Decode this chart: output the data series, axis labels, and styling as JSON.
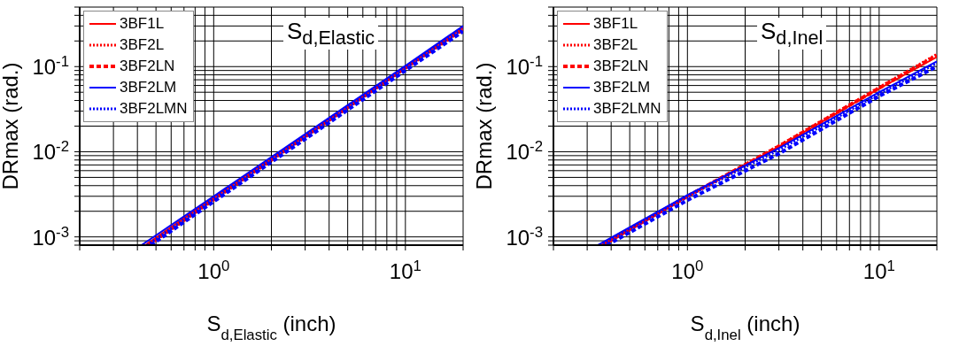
{
  "chart_data": [
    {
      "type": "line",
      "xlabel": "S$_{d,Elastic}$ (inch)",
      "ylabel": "DRmax (rad.)",
      "annotations": [
        "S$_{d,Elastic}$"
      ],
      "log": "xy",
      "grid": true,
      "legend": "top left",
      "marker": "none",
      "xlim": [
        0.2,
        20
      ],
      "ylim": [
        0.0008,
        0.5
      ],
      "xticks": [
        {
          "value": 0.2,
          "label": null
        },
        {
          "value": 0.3,
          "label": null
        },
        {
          "value": 0.4,
          "label": null
        },
        {
          "value": 0.5,
          "label": null
        },
        {
          "value": 0.6,
          "label": null
        },
        {
          "value": 0.7,
          "label": null
        },
        {
          "value": 0.8,
          "label": null
        },
        {
          "value": 0.9,
          "label": null
        },
        {
          "value": 1,
          "label": "10$^{0}$"
        },
        {
          "value": 2,
          "label": null
        },
        {
          "value": 3,
          "label": null
        },
        {
          "value": 4,
          "label": null
        },
        {
          "value": 5,
          "label": null
        },
        {
          "value": 6,
          "label": null
        },
        {
          "value": 7,
          "label": null
        },
        {
          "value": 8,
          "label": null
        },
        {
          "value": 9,
          "label": null
        },
        {
          "value": 10,
          "label": "10$^{1}$"
        },
        {
          "value": 20,
          "label": null
        }
      ],
      "yticks": [
        {
          "value": 0.0008,
          "label": null
        },
        {
          "value": 0.0009,
          "label": null
        },
        {
          "value": 0.001,
          "label": "10$^{-3}$"
        },
        {
          "value": 0.002,
          "label": null
        },
        {
          "value": 0.003,
          "label": null
        },
        {
          "value": 0.004,
          "label": null
        },
        {
          "value": 0.005,
          "label": null
        },
        {
          "value": 0.006,
          "label": null
        },
        {
          "value": 0.007,
          "label": null
        },
        {
          "value": 0.008,
          "label": null
        },
        {
          "value": 0.009,
          "label": null
        },
        {
          "value": 0.01,
          "label": "10$^{-2}$"
        },
        {
          "value": 0.02,
          "label": null
        },
        {
          "value": 0.03,
          "label": null
        },
        {
          "value": 0.04,
          "label": null
        },
        {
          "value": 0.05,
          "label": null
        },
        {
          "value": 0.06,
          "label": null
        },
        {
          "value": 0.07,
          "label": null
        },
        {
          "value": 0.08,
          "label": null
        },
        {
          "value": 0.09,
          "label": null
        },
        {
          "value": 0.1,
          "label": "10$^{-1}$"
        },
        {
          "value": 0.2,
          "label": null
        },
        {
          "value": 0.3,
          "label": null
        },
        {
          "value": 0.4,
          "label": null
        },
        {
          "value": 0.5,
          "label": null
        }
      ],
      "series": [
        {
          "name": "3BF1L",
          "color": "#ff0000",
          "line_style": "solid",
          "x": [
            0.44,
            1,
            10,
            20
          ],
          "values": [
            0.0008,
            0.0029,
            0.1,
            0.29
          ]
        },
        {
          "name": "3BF2L",
          "color": "#ff0000",
          "line_style": "dotted",
          "x": [
            0.46,
            1,
            10,
            20
          ],
          "values": [
            0.0008,
            0.0027,
            0.095,
            0.27
          ]
        },
        {
          "name": "3BF2LN",
          "color": "#ff0000",
          "line_style": "dashed",
          "x": [
            0.45,
            1,
            10,
            20
          ],
          "values": [
            0.0008,
            0.0028,
            0.098,
            0.28
          ]
        },
        {
          "name": "3BF2LM",
          "color": "#0000ff",
          "line_style": "solid",
          "x": [
            0.42,
            1,
            10,
            20
          ],
          "values": [
            0.0008,
            0.003,
            0.102,
            0.3
          ]
        },
        {
          "name": "3BF2LMN",
          "color": "#0000ff",
          "line_style": "dotted",
          "x": [
            0.45,
            1,
            10,
            20
          ],
          "values": [
            0.0008,
            0.0028,
            0.097,
            0.28
          ]
        },
        {
          "color": "#0000ff",
          "line_style": "dashed",
          "x": [
            0.47,
            1,
            10,
            20
          ],
          "values": [
            0.0008,
            0.0026,
            0.09,
            0.26
          ]
        }
      ]
    },
    {
      "type": "line",
      "xlabel": "S$_{d,Inel}$ (inch)",
      "ylabel": "DRmax (rad.)",
      "annotations": [
        "S$_{d,Inel}$"
      ],
      "log": "xy",
      "grid": true,
      "legend": "top left",
      "marker": "none",
      "xlim": [
        0.2,
        20
      ],
      "ylim": [
        0.0008,
        0.5
      ],
      "xticks": [
        {
          "value": 0.2,
          "label": null
        },
        {
          "value": 0.3,
          "label": null
        },
        {
          "value": 0.4,
          "label": null
        },
        {
          "value": 0.5,
          "label": null
        },
        {
          "value": 0.6,
          "label": null
        },
        {
          "value": 0.7,
          "label": null
        },
        {
          "value": 0.8,
          "label": null
        },
        {
          "value": 0.9,
          "label": null
        },
        {
          "value": 1,
          "label": "10$^{0}$"
        },
        {
          "value": 2,
          "label": null
        },
        {
          "value": 3,
          "label": null
        },
        {
          "value": 4,
          "label": null
        },
        {
          "value": 5,
          "label": null
        },
        {
          "value": 6,
          "label": null
        },
        {
          "value": 7,
          "label": null
        },
        {
          "value": 8,
          "label": null
        },
        {
          "value": 9,
          "label": null
        },
        {
          "value": 10,
          "label": "10$^{1}$"
        },
        {
          "value": 20,
          "label": null
        }
      ],
      "yticks": [
        {
          "value": 0.0008,
          "label": null
        },
        {
          "value": 0.0009,
          "label": null
        },
        {
          "value": 0.001,
          "label": "10$^{-3}$"
        },
        {
          "value": 0.002,
          "label": null
        },
        {
          "value": 0.003,
          "label": null
        },
        {
          "value": 0.004,
          "label": null
        },
        {
          "value": 0.005,
          "label": null
        },
        {
          "value": 0.006,
          "label": null
        },
        {
          "value": 0.007,
          "label": null
        },
        {
          "value": 0.008,
          "label": null
        },
        {
          "value": 0.009,
          "label": null
        },
        {
          "value": 0.01,
          "label": "10$^{-2}$"
        },
        {
          "value": 0.02,
          "label": null
        },
        {
          "value": 0.03,
          "label": null
        },
        {
          "value": 0.04,
          "label": null
        },
        {
          "value": 0.05,
          "label": null
        },
        {
          "value": 0.06,
          "label": null
        },
        {
          "value": 0.07,
          "label": null
        },
        {
          "value": 0.08,
          "label": null
        },
        {
          "value": 0.09,
          "label": null
        },
        {
          "value": 0.1,
          "label": "10$^{-1}$"
        },
        {
          "value": 0.2,
          "label": null
        },
        {
          "value": 0.3,
          "label": null
        },
        {
          "value": 0.4,
          "label": null
        },
        {
          "value": 0.5,
          "label": null
        }
      ],
      "series": [
        {
          "name": "3BF1L",
          "color": "#ff0000",
          "line_style": "solid",
          "x": [
            0.36,
            1,
            3,
            10,
            20
          ],
          "values": [
            0.0008,
            0.003,
            0.0115,
            0.055,
            0.13
          ]
        },
        {
          "name": "3BF2L",
          "color": "#ff0000",
          "line_style": "dotted",
          "x": [
            0.36,
            1,
            3,
            10,
            20
          ],
          "values": [
            0.0008,
            0.003,
            0.0118,
            0.057,
            0.14
          ]
        },
        {
          "name": "3BF2LN",
          "color": "#ff0000",
          "line_style": "dashed",
          "x": [
            0.36,
            1,
            3,
            10,
            20
          ],
          "values": [
            0.0008,
            0.003,
            0.0116,
            0.056,
            0.135
          ]
        },
        {
          "name": "3BF2LM",
          "color": "#0000ff",
          "line_style": "solid",
          "x": [
            0.34,
            1,
            3,
            10,
            20
          ],
          "values": [
            0.0008,
            0.0031,
            0.011,
            0.05,
            0.115
          ]
        },
        {
          "name": "3BF2LMN",
          "color": "#0000ff",
          "line_style": "dotted",
          "x": [
            0.35,
            1,
            3,
            10,
            20
          ],
          "values": [
            0.0008,
            0.003,
            0.0105,
            0.048,
            0.11
          ]
        },
        {
          "color": "#0000ff",
          "line_style": "dashed",
          "x": [
            0.38,
            1,
            3,
            10,
            20
          ],
          "values": [
            0.0008,
            0.0027,
            0.0095,
            0.045,
            0.1
          ]
        }
      ]
    }
  ]
}
